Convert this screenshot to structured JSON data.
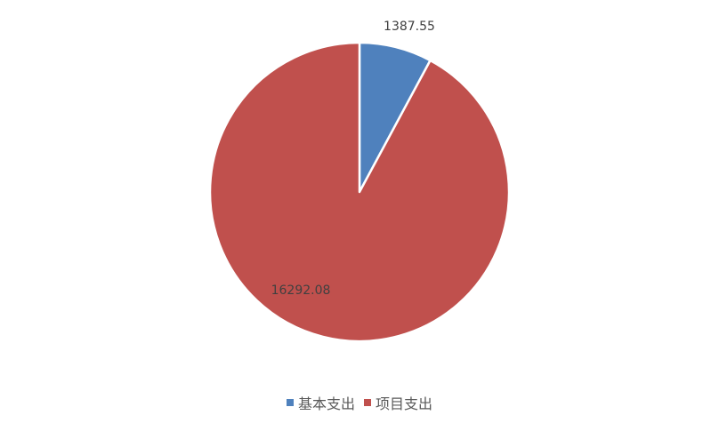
{
  "chart_data": {
    "type": "pie",
    "title": "",
    "start_angle_deg": 0,
    "direction": "clockwise",
    "slices": [
      {
        "name": "基本支出",
        "value": 1387.55,
        "label": "1387.55",
        "color": "#4f81bd"
      },
      {
        "name": "项目支出",
        "value": 16292.08,
        "label": "16292.08",
        "color": "#c0504d"
      }
    ],
    "legend_position": "bottom"
  }
}
